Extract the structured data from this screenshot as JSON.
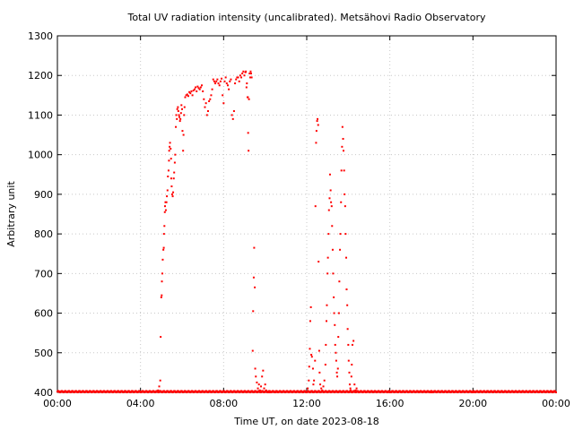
{
  "chart_data": {
    "type": "scatter",
    "title": "Total UV radiation intensity (uncalibrated). Metsähovi Radio Observatory",
    "xlabel": "Time UT, on date 2023-08-18",
    "ylabel": "Arbitrary unit",
    "xlim": [
      0,
      24
    ],
    "ylim": [
      400,
      1300
    ],
    "x_unit": "hours UT",
    "xticks": [
      {
        "v": 0,
        "label": "00:00"
      },
      {
        "v": 4,
        "label": "04:00"
      },
      {
        "v": 8,
        "label": "08:00"
      },
      {
        "v": 12,
        "label": "12:00"
      },
      {
        "v": 16,
        "label": "16:00"
      },
      {
        "v": 20,
        "label": "20:00"
      },
      {
        "v": 24,
        "label": "00:00"
      }
    ],
    "yticks": [
      {
        "v": 400,
        "label": "400"
      },
      {
        "v": 500,
        "label": "500"
      },
      {
        "v": 600,
        "label": "600"
      },
      {
        "v": 700,
        "label": "700"
      },
      {
        "v": 800,
        "label": "800"
      },
      {
        "v": 900,
        "label": "900"
      },
      {
        "v": 1000,
        "label": "1000"
      },
      {
        "v": 1100,
        "label": "1100"
      },
      {
        "v": 1200,
        "label": "1200"
      },
      {
        "v": 1300,
        "label": "1300"
      }
    ],
    "grid": true,
    "marker_color": "#ff0000",
    "baseline_value": 400,
    "series": [
      {
        "points": [
          [
            4.85,
            405
          ],
          [
            4.9,
            415
          ],
          [
            4.95,
            430
          ],
          [
            4.97,
            540
          ],
          [
            5.0,
            640
          ],
          [
            5.02,
            645
          ],
          [
            5.03,
            680
          ],
          [
            5.05,
            700
          ],
          [
            5.07,
            735
          ],
          [
            5.1,
            760
          ],
          [
            5.12,
            765
          ],
          [
            5.13,
            800
          ],
          [
            5.15,
            820
          ],
          [
            5.17,
            855
          ],
          [
            5.18,
            870
          ],
          [
            5.2,
            880
          ],
          [
            5.22,
            860
          ],
          [
            5.25,
            880
          ],
          [
            5.27,
            895
          ],
          [
            5.3,
            910
          ],
          [
            5.32,
            945
          ],
          [
            5.35,
            960
          ],
          [
            5.37,
            985
          ],
          [
            5.38,
            1010
          ],
          [
            5.4,
            1020
          ],
          [
            5.42,
            1030
          ],
          [
            5.45,
            1015
          ],
          [
            5.47,
            990
          ],
          [
            5.48,
            940
          ],
          [
            5.5,
            920
          ],
          [
            5.52,
            900
          ],
          [
            5.55,
            895
          ],
          [
            5.57,
            905
          ],
          [
            5.6,
            940
          ],
          [
            5.62,
            955
          ],
          [
            5.65,
            980
          ],
          [
            5.67,
            1000
          ],
          [
            5.7,
            1070
          ],
          [
            5.72,
            1100
          ],
          [
            5.75,
            1090
          ],
          [
            5.77,
            1115
          ],
          [
            5.8,
            1120
          ],
          [
            5.82,
            1110
          ],
          [
            5.85,
            1100
          ],
          [
            5.87,
            1095
          ],
          [
            5.9,
            1085
          ],
          [
            5.92,
            1090
          ],
          [
            5.95,
            1105
          ],
          [
            5.97,
            1125
          ],
          [
            6.0,
            1115
          ],
          [
            6.02,
            1060
          ],
          [
            6.05,
            1010
          ],
          [
            6.07,
            1050
          ],
          [
            6.1,
            1100
          ],
          [
            6.12,
            1120
          ],
          [
            6.15,
            1145
          ],
          [
            6.2,
            1150
          ],
          [
            6.25,
            1152
          ],
          [
            6.3,
            1148
          ],
          [
            6.35,
            1158
          ],
          [
            6.4,
            1155
          ],
          [
            6.45,
            1160
          ],
          [
            6.5,
            1150
          ],
          [
            6.55,
            1162
          ],
          [
            6.6,
            1165
          ],
          [
            6.65,
            1170
          ],
          [
            6.7,
            1160
          ],
          [
            6.75,
            1172
          ],
          [
            6.8,
            1168
          ],
          [
            6.85,
            1165
          ],
          [
            6.9,
            1170
          ],
          [
            6.95,
            1175
          ],
          [
            7.0,
            1160
          ],
          [
            7.05,
            1140
          ],
          [
            7.1,
            1120
          ],
          [
            7.15,
            1130
          ],
          [
            7.2,
            1100
          ],
          [
            7.25,
            1110
          ],
          [
            7.3,
            1135
          ],
          [
            7.35,
            1140
          ],
          [
            7.4,
            1150
          ],
          [
            7.45,
            1165
          ],
          [
            7.5,
            1190
          ],
          [
            7.55,
            1185
          ],
          [
            7.6,
            1180
          ],
          [
            7.65,
            1185
          ],
          [
            7.7,
            1190
          ],
          [
            7.75,
            1180
          ],
          [
            7.8,
            1175
          ],
          [
            7.85,
            1185
          ],
          [
            7.9,
            1192
          ],
          [
            7.95,
            1150
          ],
          [
            8.0,
            1130
          ],
          [
            8.05,
            1185
          ],
          [
            8.1,
            1195
          ],
          [
            8.15,
            1180
          ],
          [
            8.2,
            1175
          ],
          [
            8.25,
            1165
          ],
          [
            8.3,
            1185
          ],
          [
            8.35,
            1190
          ],
          [
            8.4,
            1100
          ],
          [
            8.45,
            1090
          ],
          [
            8.5,
            1110
          ],
          [
            8.55,
            1180
          ],
          [
            8.6,
            1190
          ],
          [
            8.65,
            1195
          ],
          [
            8.7,
            1195
          ],
          [
            8.75,
            1185
          ],
          [
            8.8,
            1200
          ],
          [
            8.85,
            1195
          ],
          [
            8.9,
            1205
          ],
          [
            8.95,
            1210
          ],
          [
            9.0,
            1200
          ],
          [
            9.05,
            1208
          ],
          [
            9.07,
            1210
          ],
          [
            9.1,
            1170
          ],
          [
            9.12,
            1180
          ],
          [
            9.15,
            1145
          ],
          [
            9.17,
            1145
          ],
          [
            9.18,
            1055
          ],
          [
            9.2,
            1010
          ],
          [
            9.22,
            1140
          ],
          [
            9.25,
            1205
          ],
          [
            9.28,
            1195
          ],
          [
            9.3,
            1210
          ],
          [
            9.32,
            1205
          ],
          [
            9.35,
            1195
          ],
          [
            9.4,
            505
          ],
          [
            9.42,
            605
          ],
          [
            9.45,
            690
          ],
          [
            9.47,
            765
          ],
          [
            9.5,
            665
          ],
          [
            9.52,
            460
          ],
          [
            9.55,
            440
          ],
          [
            9.6,
            425
          ],
          [
            9.65,
            410
          ],
          [
            9.7,
            420
          ],
          [
            9.75,
            405
          ],
          [
            9.8,
            415
          ],
          [
            9.85,
            440
          ],
          [
            9.9,
            455
          ],
          [
            9.95,
            410
          ],
          [
            10.0,
            420
          ],
          [
            10.05,
            405
          ],
          [
            10.1,
            402
          ],
          [
            10.2,
            400
          ],
          [
            10.3,
            401
          ],
          [
            10.5,
            400
          ],
          [
            12.0,
            400
          ],
          [
            12.05,
            410
          ],
          [
            12.1,
            430
          ],
          [
            12.12,
            465
          ],
          [
            12.15,
            510
          ],
          [
            12.17,
            580
          ],
          [
            12.2,
            615
          ],
          [
            12.22,
            495
          ],
          [
            12.25,
            490
          ],
          [
            12.3,
            460
          ],
          [
            12.32,
            420
          ],
          [
            12.35,
            430
          ],
          [
            12.4,
            480
          ],
          [
            12.42,
            870
          ],
          [
            12.45,
            1030
          ],
          [
            12.47,
            1060
          ],
          [
            12.5,
            1085
          ],
          [
            12.52,
            1090
          ],
          [
            12.55,
            1075
          ],
          [
            12.57,
            730
          ],
          [
            12.6,
            505
          ],
          [
            12.62,
            450
          ],
          [
            12.65,
            420
          ],
          [
            12.7,
            410
          ],
          [
            12.75,
            405
          ],
          [
            12.8,
            415
          ],
          [
            12.85,
            430
          ],
          [
            12.9,
            470
          ],
          [
            12.92,
            520
          ],
          [
            12.95,
            580
          ],
          [
            12.97,
            620
          ],
          [
            13.0,
            700
          ],
          [
            13.02,
            740
          ],
          [
            13.05,
            800
          ],
          [
            13.07,
            860
          ],
          [
            13.1,
            890
          ],
          [
            13.12,
            950
          ],
          [
            13.15,
            910
          ],
          [
            13.17,
            880
          ],
          [
            13.2,
            870
          ],
          [
            13.22,
            820
          ],
          [
            13.25,
            760
          ],
          [
            13.27,
            700
          ],
          [
            13.3,
            640
          ],
          [
            13.32,
            600
          ],
          [
            13.35,
            570
          ],
          [
            13.37,
            520
          ],
          [
            13.4,
            500
          ],
          [
            13.42,
            480
          ],
          [
            13.45,
            450
          ],
          [
            13.47,
            440
          ],
          [
            13.5,
            460
          ],
          [
            13.52,
            540
          ],
          [
            13.55,
            600
          ],
          [
            13.57,
            680
          ],
          [
            13.6,
            760
          ],
          [
            13.62,
            800
          ],
          [
            13.65,
            880
          ],
          [
            13.67,
            960
          ],
          [
            13.7,
            1020
          ],
          [
            13.72,
            1070
          ],
          [
            13.75,
            1040
          ],
          [
            13.77,
            1010
          ],
          [
            13.8,
            960
          ],
          [
            13.82,
            900
          ],
          [
            13.85,
            870
          ],
          [
            13.87,
            800
          ],
          [
            13.9,
            740
          ],
          [
            13.92,
            660
          ],
          [
            13.95,
            620
          ],
          [
            13.97,
            560
          ],
          [
            14.0,
            520
          ],
          [
            14.02,
            480
          ],
          [
            14.05,
            450
          ],
          [
            14.07,
            420
          ],
          [
            14.1,
            410
          ],
          [
            14.12,
            405
          ],
          [
            14.15,
            440
          ],
          [
            14.17,
            470
          ],
          [
            14.2,
            520
          ],
          [
            14.25,
            530
          ],
          [
            14.3,
            420
          ],
          [
            14.35,
            405
          ],
          [
            14.4,
            410
          ],
          [
            14.45,
            402
          ],
          [
            14.5,
            400
          ],
          [
            14.6,
            402
          ],
          [
            14.8,
            401
          ],
          [
            15.2,
            400
          ],
          [
            16.0,
            400
          ],
          [
            17.4,
            402
          ],
          [
            18.0,
            400
          ],
          [
            20.0,
            400
          ],
          [
            22.0,
            401
          ],
          [
            24.0,
            400
          ]
        ]
      }
    ]
  }
}
